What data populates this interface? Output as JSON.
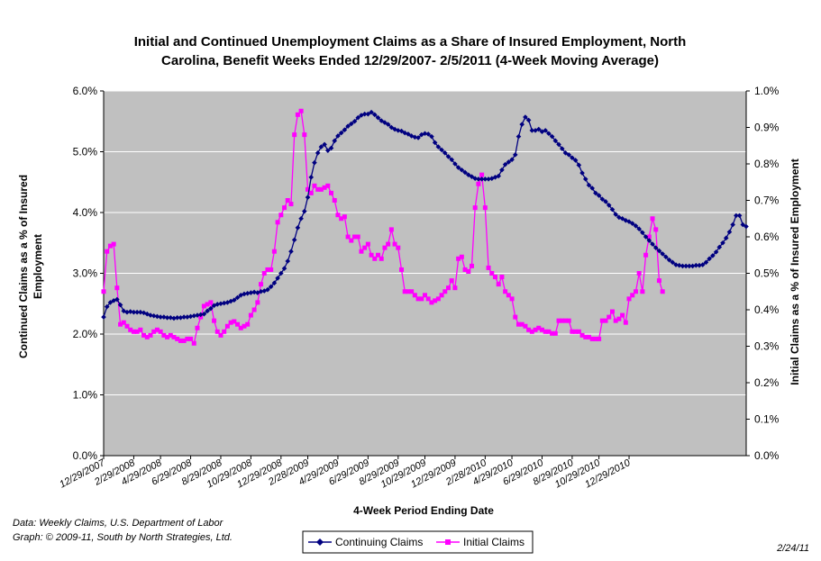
{
  "chart_data": {
    "type": "line",
    "title_lines": [
      "Initial and Continued Unemployment Claims as a Share of Insured Employment, North",
      "Carolina, Benefit Weeks Ended 12/29/2007- 2/5/2011 (4-Week Moving Average)"
    ],
    "xlabel": "4-Week Period Ending Date",
    "ylabel_left_lines": [
      "Continued Claims as a % of Insured",
      "Employment"
    ],
    "ylabel_right": "Initial Claims as a % of Insured Employment",
    "x_tick_labels": [
      "12/29/2007",
      "2/29/2008",
      "4/29/2008",
      "6/29/2008",
      "8/29/2008",
      "10/29/2008",
      "12/29/2008",
      "2/28/2009",
      "4/29/2009",
      "6/29/2009",
      "8/29/2009",
      "10/29/2009",
      "12/29/2009",
      "2/28/2010",
      "4/29/2010",
      "6/29/2010",
      "8/29/2010",
      "10/29/2010",
      "12/29/2010"
    ],
    "x_tick_week_index": [
      0,
      9,
      17,
      26,
      35,
      44,
      53,
      61,
      70,
      79,
      88,
      96,
      105,
      114,
      122,
      131,
      140,
      148,
      157
    ],
    "y_left": {
      "min": 0,
      "max": 6.0,
      "step": 1.0,
      "tick_labels": [
        "0.0%",
        "1.0%",
        "2.0%",
        "3.0%",
        "4.0%",
        "5.0%",
        "6.0%"
      ]
    },
    "y_right": {
      "min": 0,
      "max": 1.0,
      "step": 0.1,
      "tick_labels": [
        "0.0%",
        "0.1%",
        "0.2%",
        "0.3%",
        "0.4%",
        "0.5%",
        "0.6%",
        "0.7%",
        "0.8%",
        "0.9%",
        "1.0%"
      ]
    },
    "grid": true,
    "legend_position": "bottom",
    "plot_background": "#c0c0c0",
    "series": [
      {
        "name": "Continuing Claims",
        "axis": "left",
        "color": "#000080",
        "marker": "diamond",
        "unit": "percent",
        "values": [
          2.28,
          2.45,
          2.52,
          2.55,
          2.57,
          2.48,
          2.38,
          2.36,
          2.37,
          2.36,
          2.36,
          2.36,
          2.35,
          2.33,
          2.31,
          2.3,
          2.29,
          2.28,
          2.28,
          2.27,
          2.27,
          2.26,
          2.27,
          2.27,
          2.28,
          2.28,
          2.29,
          2.3,
          2.31,
          2.32,
          2.33,
          2.38,
          2.42,
          2.47,
          2.49,
          2.5,
          2.51,
          2.52,
          2.54,
          2.56,
          2.6,
          2.64,
          2.66,
          2.67,
          2.68,
          2.69,
          2.68,
          2.7,
          2.71,
          2.73,
          2.78,
          2.84,
          2.92,
          3.0,
          3.08,
          3.2,
          3.36,
          3.55,
          3.75,
          3.9,
          4.02,
          4.25,
          4.58,
          4.82,
          4.98,
          5.08,
          5.12,
          5.02,
          5.06,
          5.18,
          5.26,
          5.31,
          5.36,
          5.42,
          5.46,
          5.5,
          5.56,
          5.6,
          5.62,
          5.62,
          5.65,
          5.61,
          5.56,
          5.51,
          5.48,
          5.45,
          5.4,
          5.37,
          5.35,
          5.34,
          5.31,
          5.29,
          5.26,
          5.24,
          5.23,
          5.28,
          5.3,
          5.29,
          5.25,
          5.15,
          5.08,
          5.03,
          4.98,
          4.92,
          4.87,
          4.8,
          4.74,
          4.7,
          4.66,
          4.62,
          4.59,
          4.56,
          4.55,
          4.55,
          4.55,
          4.55,
          4.56,
          4.58,
          4.6,
          4.7,
          4.79,
          4.83,
          4.87,
          4.95,
          5.25,
          5.45,
          5.57,
          5.52,
          5.35,
          5.35,
          5.37,
          5.33,
          5.35,
          5.3,
          5.25,
          5.18,
          5.12,
          5.05,
          4.98,
          4.95,
          4.9,
          4.86,
          4.78,
          4.65,
          4.55,
          4.45,
          4.4,
          4.32,
          4.28,
          4.22,
          4.18,
          4.12,
          4.05,
          3.97,
          3.92,
          3.9,
          3.87,
          3.85,
          3.82,
          3.78,
          3.73,
          3.67,
          3.6,
          3.54,
          3.48,
          3.42,
          3.37,
          3.32,
          3.27,
          3.22,
          3.18,
          3.14,
          3.13,
          3.12,
          3.12,
          3.12,
          3.12,
          3.13,
          3.13,
          3.14,
          3.18,
          3.24,
          3.29,
          3.35,
          3.43,
          3.5,
          3.58,
          3.68,
          3.8,
          3.95,
          3.95,
          3.8,
          3.77
        ]
      },
      {
        "name": "Initial Claims",
        "axis": "right",
        "color": "#ff00ff",
        "marker": "square",
        "unit": "percent",
        "values": [
          0.45,
          0.56,
          0.575,
          0.58,
          0.46,
          0.36,
          0.365,
          0.355,
          0.345,
          0.34,
          0.34,
          0.345,
          0.33,
          0.325,
          0.33,
          0.34,
          0.345,
          0.34,
          0.33,
          0.325,
          0.33,
          0.325,
          0.32,
          0.315,
          0.315,
          0.32,
          0.32,
          0.308,
          0.35,
          0.38,
          0.41,
          0.415,
          0.42,
          0.37,
          0.34,
          0.33,
          0.34,
          0.355,
          0.365,
          0.368,
          0.36,
          0.35,
          0.355,
          0.36,
          0.385,
          0.4,
          0.42,
          0.47,
          0.5,
          0.51,
          0.51,
          0.56,
          0.64,
          0.66,
          0.68,
          0.7,
          0.69,
          0.88,
          0.935,
          0.945,
          0.88,
          0.73,
          0.72,
          0.74,
          0.73,
          0.73,
          0.735,
          0.74,
          0.72,
          0.7,
          0.66,
          0.65,
          0.655,
          0.6,
          0.59,
          0.6,
          0.6,
          0.56,
          0.57,
          0.58,
          0.55,
          0.54,
          0.55,
          0.54,
          0.57,
          0.58,
          0.62,
          0.58,
          0.57,
          0.51,
          0.45,
          0.45,
          0.45,
          0.44,
          0.43,
          0.43,
          0.44,
          0.43,
          0.42,
          0.425,
          0.43,
          0.44,
          0.45,
          0.46,
          0.48,
          0.46,
          0.54,
          0.545,
          0.51,
          0.505,
          0.52,
          0.68,
          0.745,
          0.77,
          0.68,
          0.515,
          0.5,
          0.49,
          0.47,
          0.49,
          0.45,
          0.44,
          0.43,
          0.38,
          0.36,
          0.36,
          0.355,
          0.345,
          0.34,
          0.345,
          0.35,
          0.345,
          0.34,
          0.34,
          0.335,
          0.335,
          0.37,
          0.37,
          0.37,
          0.37,
          0.34,
          0.34,
          0.34,
          0.33,
          0.325,
          0.325,
          0.32,
          0.32,
          0.32,
          0.37,
          0.37,
          0.38,
          0.395,
          0.37,
          0.375,
          0.385,
          0.365,
          0.43,
          0.44,
          0.45,
          0.5,
          0.45,
          0.55,
          0.6,
          0.65,
          0.62,
          0.48,
          0.45
        ]
      }
    ]
  },
  "notes": {
    "source_line1": "Data:  Weekly Claims, U.S. Department of Labor",
    "source_line2": "Graph: © 2009-11, South by North Strategies, Ltd.",
    "date_stamp": "2/24/11"
  }
}
